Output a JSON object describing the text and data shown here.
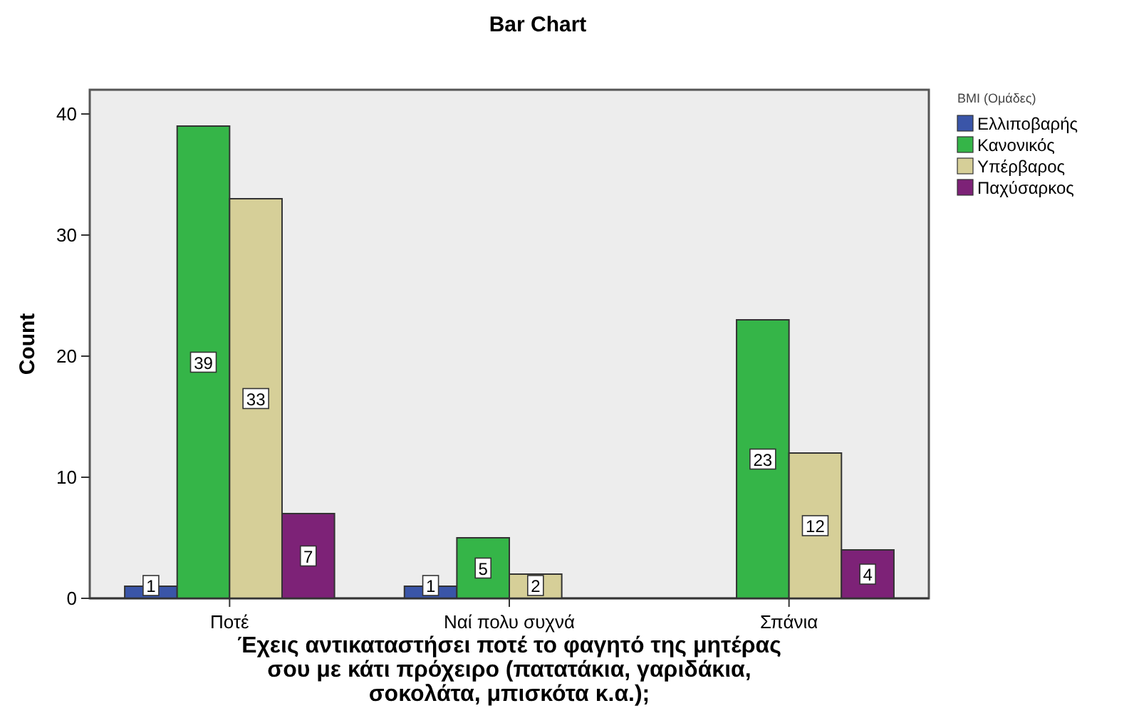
{
  "chart_data": {
    "type": "bar",
    "title": "Bar Chart",
    "xlabel": "Έχεις αντικαταστήσει ποτέ το φαγητό της μητέρας σου με κάτι πρόχειρο (πατατάκια, γαριδάκια, σοκολάτα, μπισκότα κ.α.);",
    "ylabel": "Count",
    "legend_title": "BMI (Ομάδες)",
    "categories": [
      "Ποτέ",
      "Ναί πολυ συχνά",
      "Σπάνια"
    ],
    "series": [
      {
        "name": "Ελλιποβαρής",
        "color": "#3a55a8",
        "values": [
          1,
          1,
          null
        ]
      },
      {
        "name": "Κανονικός",
        "color": "#35b548",
        "values": [
          39,
          5,
          23
        ]
      },
      {
        "name": "Υπέρβαρος",
        "color": "#d6cf98",
        "values": [
          33,
          2,
          12
        ]
      },
      {
        "name": "Παχύσαρκος",
        "color": "#7d2277",
        "values": [
          7,
          null,
          4
        ]
      }
    ],
    "ylim": [
      0,
      42
    ],
    "yticks": [
      0,
      10,
      20,
      30,
      40
    ],
    "grid": false,
    "legend": "right",
    "data_labels": true
  }
}
